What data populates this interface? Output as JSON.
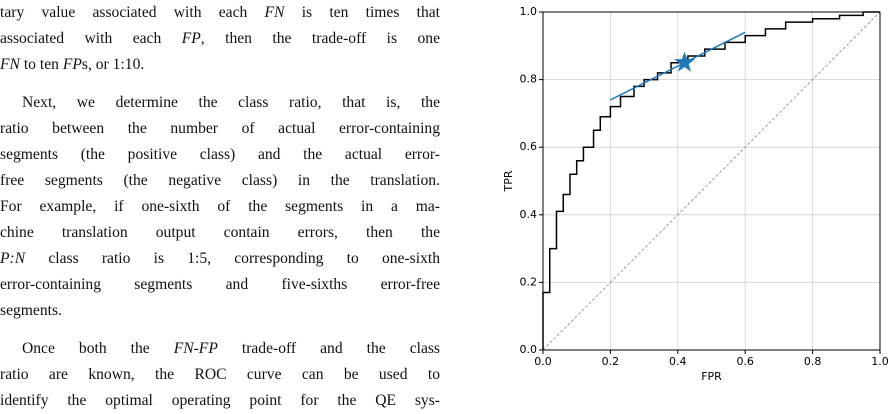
{
  "paragraphs": [
    {
      "lines": [
        [
          "tary value associated with each ",
          {
            "text": "FN",
            "style": "italic"
          },
          " is ten times that"
        ],
        [
          "associated with each ",
          {
            "text": "FP",
            "style": "italic"
          },
          ", then the trade-off is one"
        ],
        [
          {
            "text": "FN",
            "style": "italic"
          },
          " to ten ",
          {
            "text": "FP",
            "style": "italic"
          },
          "s, or 1:10."
        ]
      ]
    },
    {
      "lines": [
        [
          "Next, we determine the class ratio, that is, the"
        ],
        [
          "ratio between the number of actual error-containing"
        ],
        [
          "segments (the positive class) and the actual error-"
        ],
        [
          "free segments (the negative class) in the translation."
        ],
        [
          "For example, if one-sixth of the segments in a ma-"
        ],
        [
          "chine translation output contain errors, then the"
        ],
        [
          {
            "text": "P:N",
            "style": "italic"
          },
          " class ratio is 1:5, corresponding to one-sixth"
        ],
        [
          "error-containing segments and five-sixths error-free"
        ],
        [
          "segments."
        ]
      ]
    },
    {
      "lines": [
        [
          "Once both the ",
          {
            "text": "FN-FP",
            "style": "italic"
          },
          " trade-off and the class"
        ],
        [
          "ratio are known, the ROC curve can be used to"
        ],
        [
          "identify the optimal operating point for the QE sys-"
        ]
      ]
    }
  ],
  "chart_data": {
    "type": "line",
    "xlabel": "FPR",
    "ylabel": "TPR",
    "xlim": [
      0,
      1
    ],
    "ylim": [
      0,
      1
    ],
    "xticks": [
      {
        "value": 0,
        "label": "0.0"
      },
      0.2,
      0.4,
      0.6,
      0.8,
      {
        "value": 1,
        "label": "1.0"
      }
    ],
    "yticks": [
      {
        "value": 0,
        "label": "0.0"
      },
      0.2,
      0.4,
      0.6,
      0.8,
      {
        "value": 1,
        "label": "1.0"
      }
    ],
    "grid": true,
    "series": [
      {
        "color": "#888888",
        "linestyle": "dashed",
        "x": [
          0,
          1
        ],
        "values": [
          0,
          1
        ]
      },
      {
        "color": "#000000",
        "linestyle": "solid",
        "x": [
          0,
          0,
          0.02,
          0.02,
          0.04,
          0.04,
          0.06,
          0.06,
          0.08,
          0.08,
          0.1,
          0.1,
          0.12,
          0.12,
          0.15,
          0.15,
          0.17,
          0.17,
          0.2,
          0.2,
          0.23,
          0.23,
          0.27,
          0.27,
          0.3,
          0.3,
          0.34,
          0.34,
          0.38,
          0.38,
          0.43,
          0.43,
          0.48,
          0.48,
          0.54,
          0.54,
          0.6,
          0.6,
          0.66,
          0.66,
          0.72,
          0.72,
          0.8,
          0.8,
          0.88,
          0.88,
          0.95,
          0.95,
          1.0
        ],
        "values": [
          0,
          0.17,
          0.17,
          0.3,
          0.3,
          0.41,
          0.41,
          0.46,
          0.46,
          0.52,
          0.52,
          0.56,
          0.56,
          0.6,
          0.6,
          0.65,
          0.65,
          0.69,
          0.69,
          0.72,
          0.72,
          0.75,
          0.75,
          0.78,
          0.78,
          0.8,
          0.8,
          0.82,
          0.82,
          0.85,
          0.85,
          0.87,
          0.87,
          0.89,
          0.89,
          0.91,
          0.91,
          0.93,
          0.93,
          0.95,
          0.95,
          0.97,
          0.97,
          0.98,
          0.98,
          0.99,
          0.99,
          1.0,
          1.0
        ]
      },
      {
        "color": "#1f77b4",
        "linestyle": "solid",
        "x": [
          0.2,
          0.6
        ],
        "values": [
          0.74,
          0.94
        ]
      }
    ],
    "marker": {
      "x": 0.42,
      "y": 0.85,
      "color": "#1f77b4",
      "shape": "star"
    }
  }
}
